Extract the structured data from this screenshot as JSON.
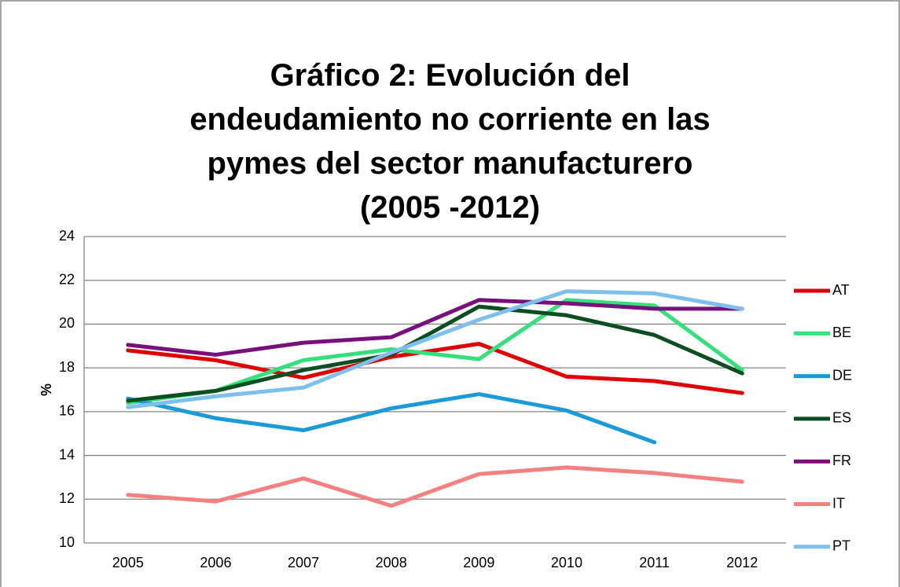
{
  "chart_data": {
    "type": "line",
    "title": "Gráfico 2: Evolución del endeudamiento no corriente en las pymes del sector manufacturero (2005 -2012)",
    "y_label": "%",
    "categories": [
      "2005",
      "2006",
      "2007",
      "2008",
      "2009",
      "2010",
      "2011",
      "2012"
    ],
    "ylim": [
      10,
      24
    ],
    "yticks": [
      10,
      12,
      14,
      16,
      18,
      20,
      22,
      24
    ],
    "grid": true,
    "legend": "right",
    "series": [
      {
        "name": "AT",
        "color": "#e00000",
        "values": [
          18.8,
          18.35,
          17.55,
          18.5,
          19.1,
          17.6,
          17.4,
          16.85
        ]
      },
      {
        "name": "BE",
        "color": "#33e07a",
        "values": [
          16.4,
          16.95,
          18.35,
          18.85,
          18.4,
          21.1,
          20.85,
          17.9
        ]
      },
      {
        "name": "DE",
        "color": "#1a9bd7",
        "values": [
          16.6,
          15.7,
          15.15,
          16.15,
          16.8,
          16.05,
          14.6,
          null
        ]
      },
      {
        "name": "ES",
        "color": "#0c4d22",
        "values": [
          16.5,
          16.95,
          17.9,
          18.6,
          20.8,
          20.4,
          19.5,
          17.75
        ]
      },
      {
        "name": "FR",
        "color": "#77107a",
        "values": [
          19.05,
          18.6,
          19.15,
          19.4,
          21.1,
          20.95,
          20.7,
          20.7
        ]
      },
      {
        "name": "IT",
        "color": "#f48080",
        "values": [
          12.2,
          11.9,
          12.95,
          11.7,
          13.15,
          13.45,
          13.2,
          12.8
        ]
      },
      {
        "name": "PT",
        "color": "#7fbfee",
        "values": [
          16.2,
          16.7,
          17.1,
          18.7,
          20.2,
          21.5,
          21.4,
          20.7
        ]
      }
    ]
  }
}
